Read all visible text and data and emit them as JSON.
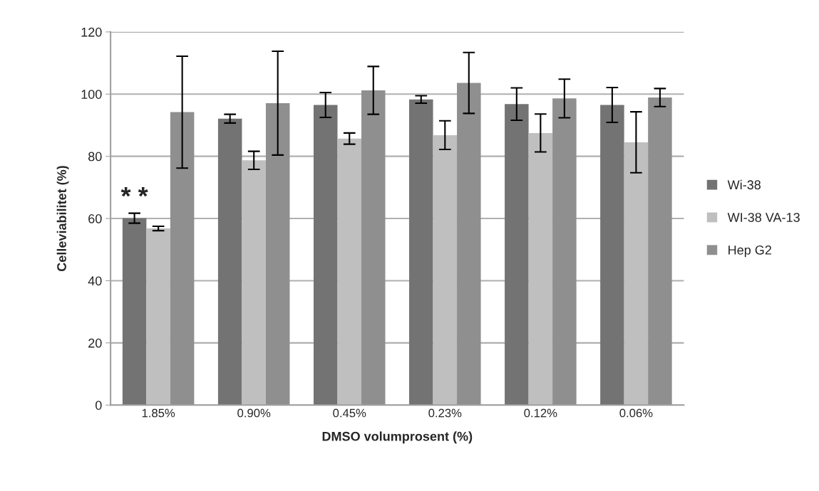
{
  "chart_data": {
    "type": "bar",
    "xlabel": "DMSO volumprosent (%)",
    "ylabel": "Celleviabilitet (%)",
    "categories": [
      "1.85%",
      "0.90%",
      "0.45%",
      "0.23%",
      "0.12%",
      "0.06%"
    ],
    "series": [
      {
        "name": "Wi-38",
        "color": "#737373",
        "values": [
          60.1,
          92.1,
          96.5,
          98.3,
          96.8,
          96.5
        ],
        "errors": [
          1.6,
          1.4,
          4,
          1.2,
          5.2,
          5.6
        ]
      },
      {
        "name": "WI-38 VA-13",
        "color": "#bfbfbf",
        "values": [
          56.8,
          78.7,
          85.7,
          86.8,
          87.5,
          84.5
        ],
        "errors": [
          0.7,
          2.9,
          1.8,
          4.6,
          6.1,
          9.8
        ]
      },
      {
        "name": "Hep G2",
        "color": "#8f8f8f",
        "values": [
          94.2,
          97.1,
          101.2,
          103.6,
          98.6,
          98.9
        ],
        "errors": [
          18,
          16.7,
          7.7,
          9.8,
          6.2,
          2.9
        ]
      }
    ],
    "ylim": [
      0,
      120
    ],
    "yticks": [
      0,
      20,
      40,
      60,
      80,
      100,
      120
    ],
    "grid": "y",
    "legend": "right",
    "annotations": [
      "* *"
    ]
  }
}
